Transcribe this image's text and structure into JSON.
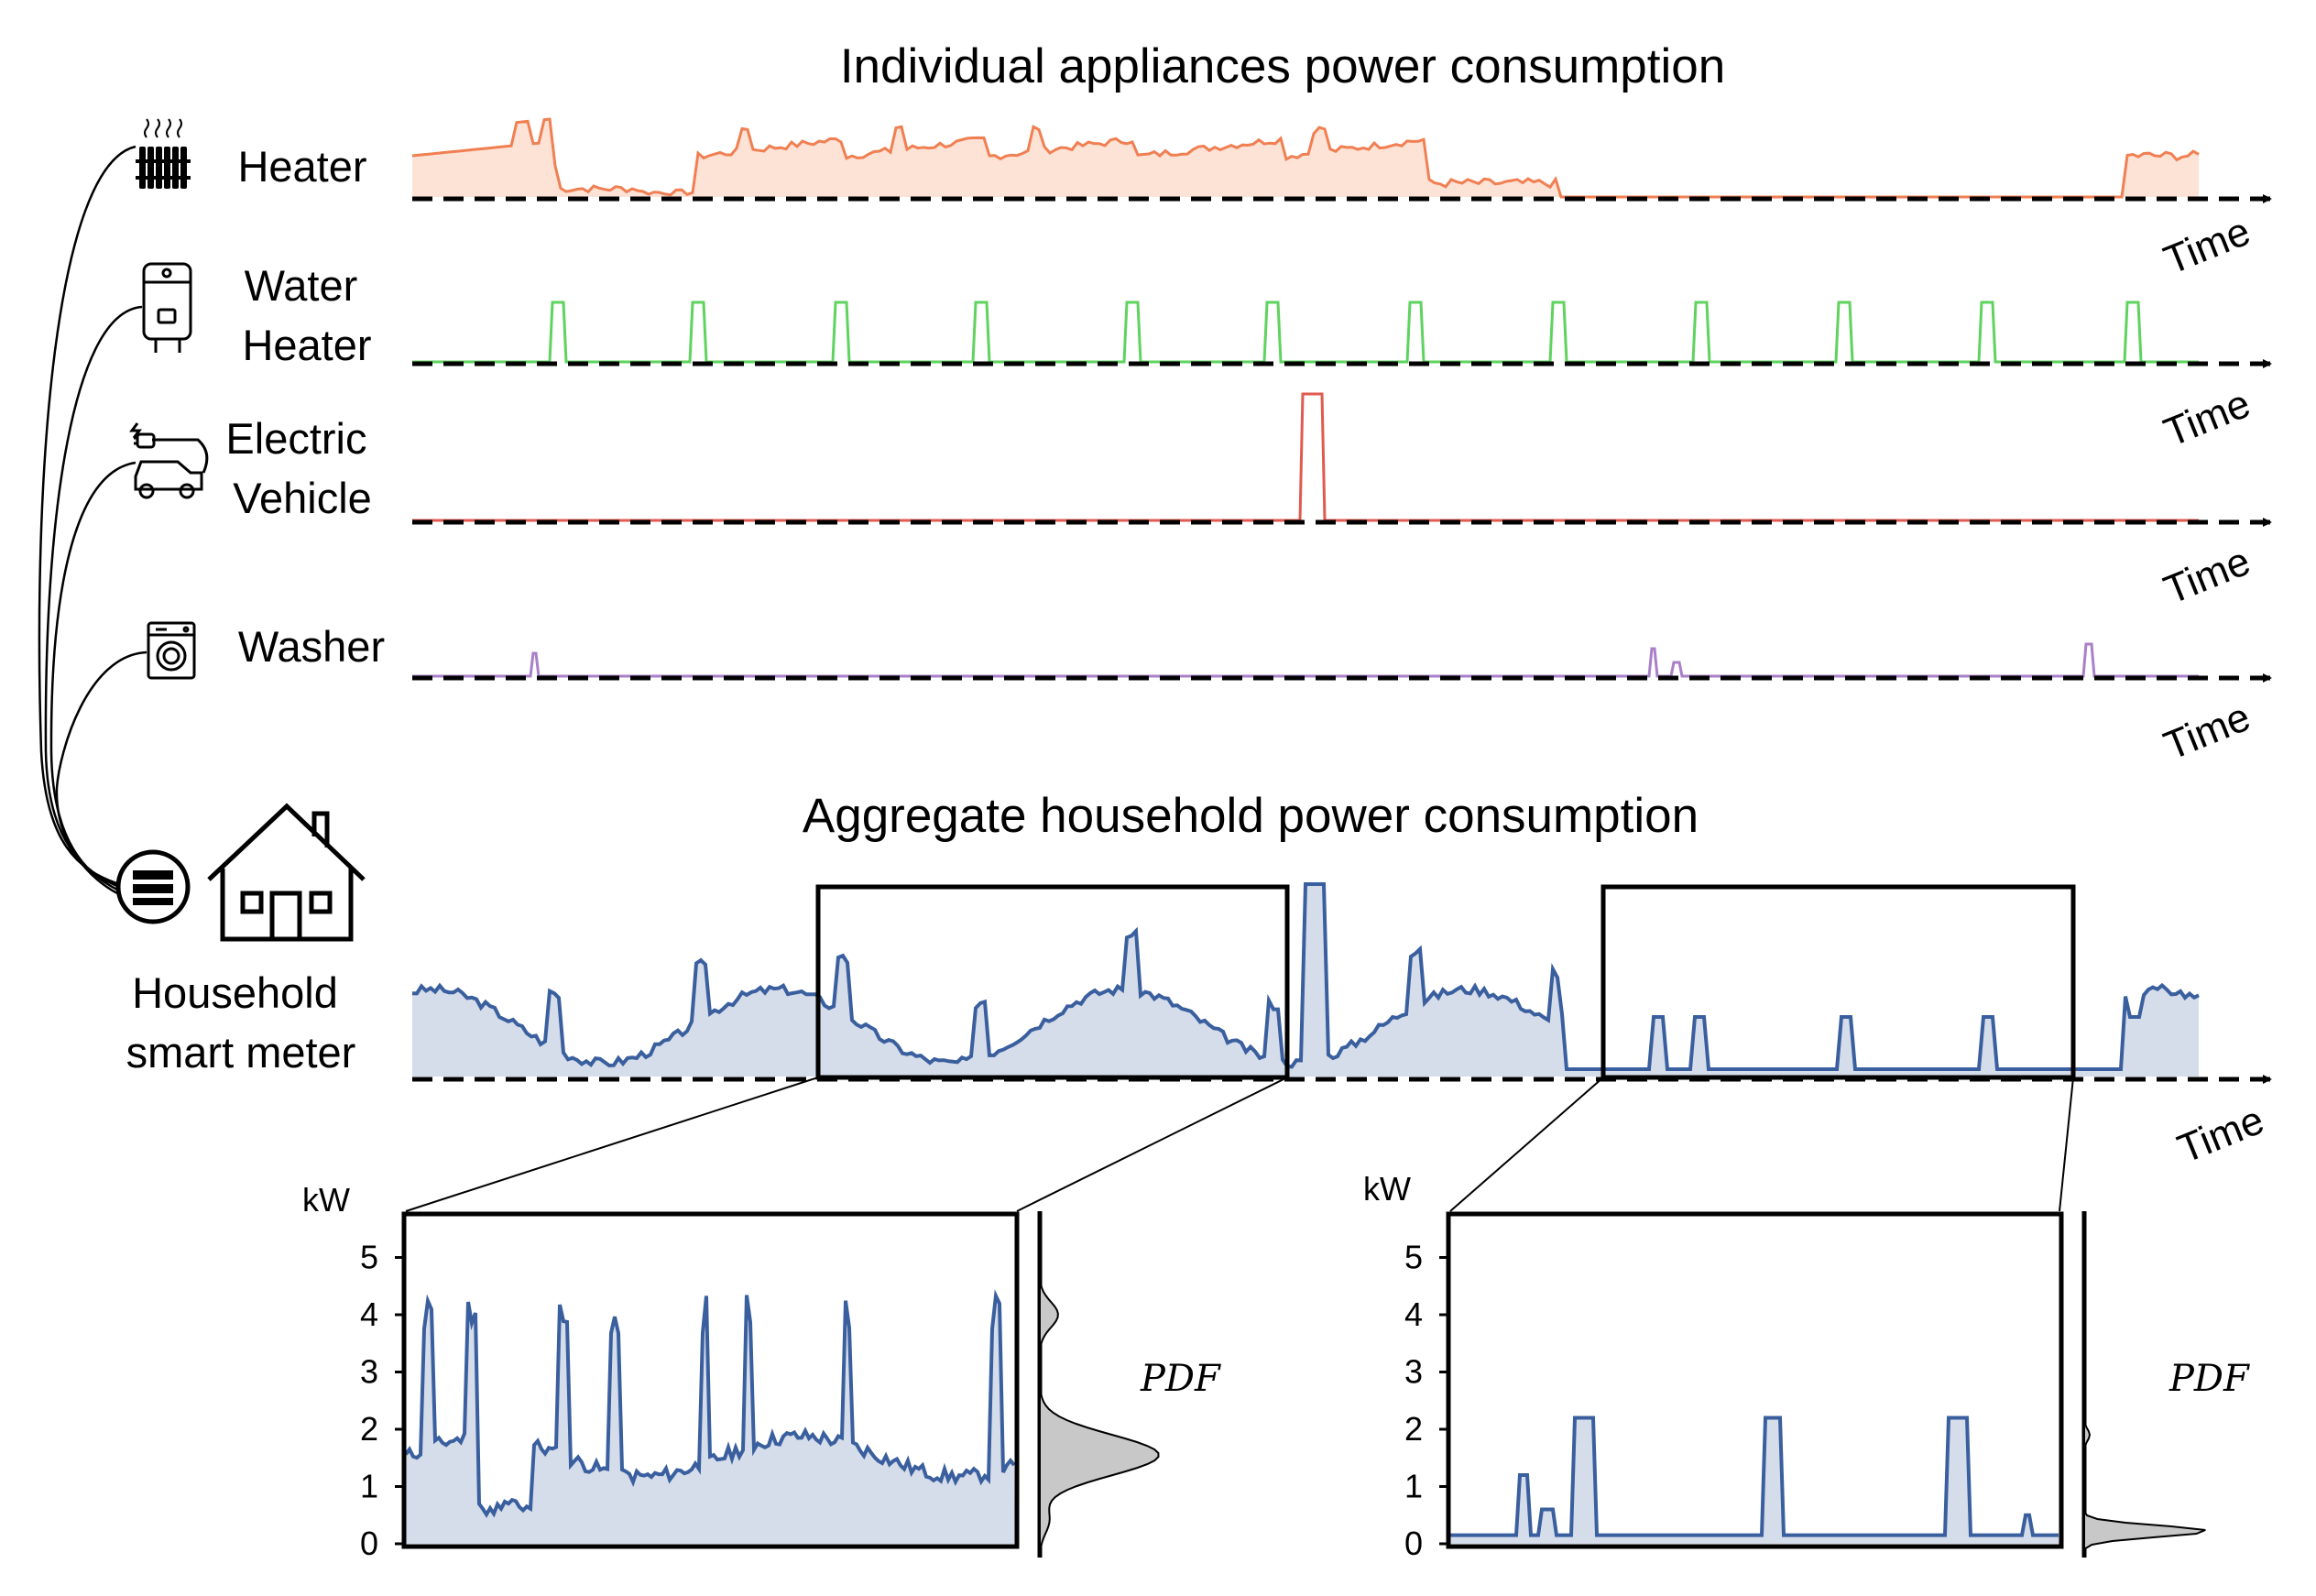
{
  "titles": {
    "individual": "Individual appliances power consumption",
    "aggregate": "Aggregate household power consumption"
  },
  "appliances": [
    {
      "key": "heater",
      "label_lines": [
        "Heater"
      ],
      "color": "#f07f52",
      "icon": "radiator-icon"
    },
    {
      "key": "water_heater",
      "label_lines": [
        "Water",
        "Heater"
      ],
      "color": "#5ed35e",
      "icon": "water-heater-icon"
    },
    {
      "key": "ev",
      "label_lines": [
        "Electric",
        "Vehicle"
      ],
      "color": "#e05a4f",
      "icon": "electric-car-icon"
    },
    {
      "key": "washer",
      "label_lines": [
        "Washer"
      ],
      "color": "#a97fc9",
      "icon": "washing-machine-icon"
    }
  ],
  "axis_label": "Time",
  "meter": {
    "label_lines": [
      "Household",
      "smart meter"
    ],
    "icon": "smart-meter-icon",
    "house_icon": "house-icon"
  },
  "aggregate_color": "#3a5f9e",
  "aggregate_fill": "#d5dcea",
  "pdf_color": "#c8c8c8",
  "zoom_panels": [
    {
      "unit": "kW",
      "ticks": [
        "0",
        "1",
        "2",
        "3",
        "4",
        "5"
      ],
      "pdf_label": "PDF"
    },
    {
      "unit": "kW",
      "ticks": [
        "0",
        "1",
        "2",
        "3",
        "4",
        "5"
      ],
      "pdf_label": "PDF"
    }
  ]
}
